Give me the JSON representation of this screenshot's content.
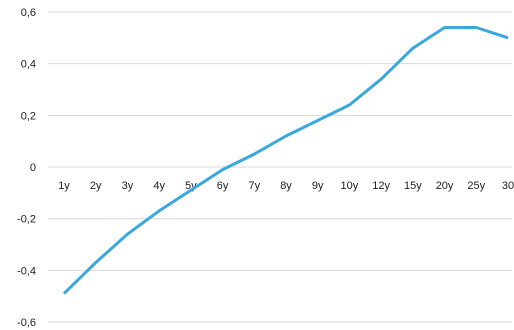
{
  "chart_data": {
    "type": "line",
    "categories": [
      "1y",
      "2y",
      "3y",
      "4y",
      "5y",
      "6y",
      "7y",
      "8y",
      "9y",
      "10y",
      "12y",
      "15y",
      "20y",
      "25y",
      "30"
    ],
    "series": [
      {
        "values": [
          -0.49,
          -0.37,
          -0.26,
          -0.17,
          -0.09,
          -0.01,
          0.05,
          0.12,
          0.18,
          0.24,
          0.34,
          0.46,
          0.54,
          0.54,
          0.5
        ]
      }
    ],
    "ylim": [
      -0.6,
      0.6
    ],
    "yticks": [
      0.6,
      0.4,
      0.2,
      0,
      -0.2,
      -0.4,
      -0.6
    ],
    "ytick_labels": [
      "0,6",
      "0,4",
      "0,2",
      "0",
      "-0,2",
      "-0,4",
      "-0,6"
    ],
    "grid": true,
    "line_color": "#3aa8dc",
    "grid_color": "#d9d9d9"
  }
}
